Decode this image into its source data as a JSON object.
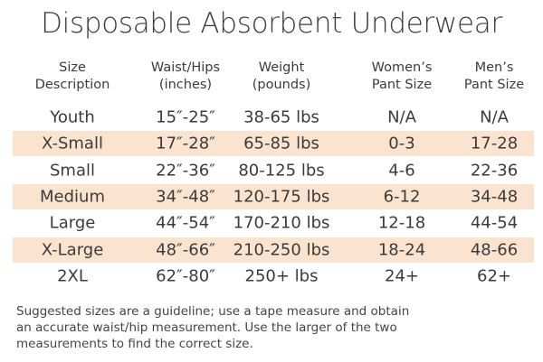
{
  "title": "Disposable Absorbent Underwear",
  "table": {
    "headers": [
      [
        "Size",
        "Description"
      ],
      [
        "Waist/Hips",
        "(inches)"
      ],
      [
        "Weight",
        "(pounds)"
      ],
      [
        "Women’s",
        "Pant Size"
      ],
      [
        "Men’s",
        "Pant Size"
      ]
    ],
    "rows": [
      [
        "Youth",
        "15″-25″",
        "38-65 lbs",
        "N/A",
        "N/A"
      ],
      [
        "X-Small",
        "17″-28″",
        "65-85 lbs",
        "0-3",
        "17-28"
      ],
      [
        "Small",
        "22″-36″",
        "80-125 lbs",
        "4-6",
        "22-36"
      ],
      [
        "Medium",
        "34″-48″",
        "120-175 lbs",
        "6-12",
        "34-48"
      ],
      [
        "Large",
        "44″-54″",
        "170-210 lbs",
        "12-18",
        "44-54"
      ],
      [
        "X-Large",
        "48″-66″",
        "210-250 lbs",
        "18-24",
        "48-66"
      ],
      [
        "2XL",
        "62″-80″",
        "250+ lbs",
        "24+",
        "62+"
      ]
    ]
  },
  "footnote": [
    "Suggested sizes are a guideline; use a tape measure and obtain",
    "an accurate waist/hip measurement. Use the larger of the two",
    "measurements to find the correct size."
  ]
}
